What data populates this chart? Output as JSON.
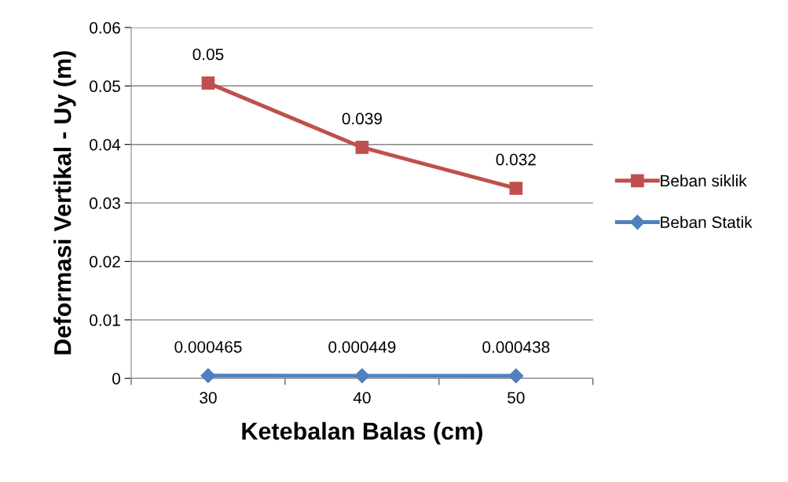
{
  "chart_data": {
    "type": "line",
    "xlabel": "Ketebalan Balas (cm)",
    "ylabel": "Deformasi Vertikal - Uy (m)",
    "categories": [
      "30",
      "40",
      "50"
    ],
    "series": [
      {
        "name": "Beban siklik",
        "color": "#c0504d",
        "marker": "square",
        "values": [
          0.0505,
          0.0395,
          0.0325
        ],
        "value_labels": [
          "0.05",
          "0.039",
          "0.032"
        ]
      },
      {
        "name": "Beban Statik",
        "color": "#4f81bd",
        "marker": "diamond",
        "values": [
          0.000465,
          0.000449,
          0.000438
        ],
        "value_labels": [
          "0.000465",
          "0.000449",
          "0.000438"
        ]
      }
    ],
    "ylim": [
      0,
      0.06
    ],
    "yticks": [
      0,
      0.01,
      0.02,
      0.03,
      0.04,
      0.05,
      0.06
    ],
    "grid": "y",
    "legend": "right",
    "line_style": "solid"
  }
}
